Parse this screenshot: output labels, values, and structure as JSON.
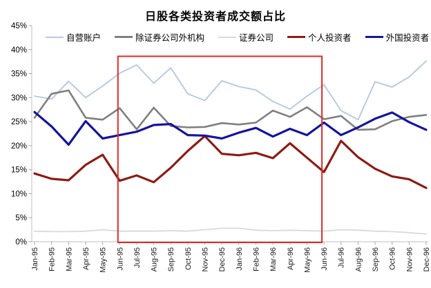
{
  "title": "日股各类投资者成交额占比",
  "legend": [
    {
      "label": "自营账户",
      "color": "#B7CBE2"
    },
    {
      "label": "除证券公司外机构",
      "color": "#7F7F7F"
    },
    {
      "label": "证券公司",
      "color": "#D9D9D9"
    },
    {
      "label": "个人投资者",
      "color": "#8E1B13"
    },
    {
      "label": "外国投资者",
      "color": "#14149E"
    }
  ],
  "chart_data": {
    "type": "line",
    "title": "日股各类投资者成交额占比",
    "x": [
      "Jan-95",
      "Feb-95",
      "Mar-95",
      "Apr-95",
      "May-95",
      "Jun-95",
      "Jul-95",
      "Aug-95",
      "Sep-95",
      "Oct-95",
      "Nov-95",
      "Dec-95",
      "Jan-96",
      "Feb-96",
      "Mar-96",
      "Apr-96",
      "May-96",
      "Jun-96",
      "Jul-96",
      "Aug-96",
      "Sep-96",
      "Oct-96",
      "Nov-96",
      "Dec-96"
    ],
    "series": [
      {
        "name": "自营账户",
        "color": "#B7CBE2",
        "values": [
          30.3,
          29.7,
          33.4,
          30.0,
          32.4,
          35.1,
          36.8,
          33.0,
          36.2,
          30.8,
          29.4,
          33.5,
          32.3,
          31.6,
          29.2,
          27.6,
          30.3,
          32.7,
          27.3,
          25.4,
          33.3,
          32.2,
          34.3,
          37.6
        ]
      },
      {
        "name": "除证券公司外机构",
        "color": "#7F7F7F",
        "values": [
          25.8,
          30.8,
          31.5,
          25.8,
          25.4,
          27.8,
          23.4,
          27.9,
          24.1,
          23.8,
          23.9,
          24.7,
          24.4,
          24.8,
          27.3,
          26.0,
          28.0,
          25.5,
          26.2,
          23.3,
          23.4,
          25.1,
          26.0,
          26.4
        ]
      },
      {
        "name": "证券公司",
        "color": "#D9D9D9",
        "values": [
          2.2,
          2.1,
          2.1,
          2.2,
          2.5,
          2.2,
          2.2,
          2.2,
          2.3,
          2.2,
          2.5,
          2.8,
          2.8,
          2.4,
          2.3,
          2.4,
          2.3,
          2.2,
          2.5,
          2.4,
          2.2,
          2.1,
          1.9,
          1.6
        ]
      },
      {
        "name": "个人投资者",
        "color": "#8E1B13",
        "values": [
          14.2,
          13.1,
          12.8,
          16.0,
          18.1,
          12.7,
          13.8,
          12.4,
          15.4,
          18.9,
          22.0,
          18.3,
          18.0,
          18.5,
          17.4,
          20.5,
          17.5,
          14.5,
          21.0,
          17.6,
          15.2,
          13.6,
          13.0,
          11.2
        ]
      },
      {
        "name": "外国投资者",
        "color": "#14149E",
        "values": [
          27.0,
          24.0,
          20.2,
          25.1,
          21.5,
          22.2,
          22.9,
          24.3,
          24.5,
          22.2,
          22.1,
          21.5,
          22.7,
          23.7,
          21.9,
          23.5,
          22.2,
          24.8,
          22.2,
          23.8,
          25.6,
          26.9,
          24.9,
          23.3
        ]
      }
    ],
    "ylim": [
      0,
      45
    ],
    "ytick_step": 5,
    "ytick_labels": [
      "0%",
      "5%",
      "10%",
      "15%",
      "20%",
      "25%",
      "30%",
      "35%",
      "40%",
      "45%"
    ],
    "grid": false,
    "legend_position": "top",
    "x_label_rotation": -90,
    "highlight_box": {
      "x_from": "Jun-95",
      "x_to": "Jun-96",
      "y_from": 0,
      "y_to": 38.6,
      "color": "#E02A22"
    }
  }
}
